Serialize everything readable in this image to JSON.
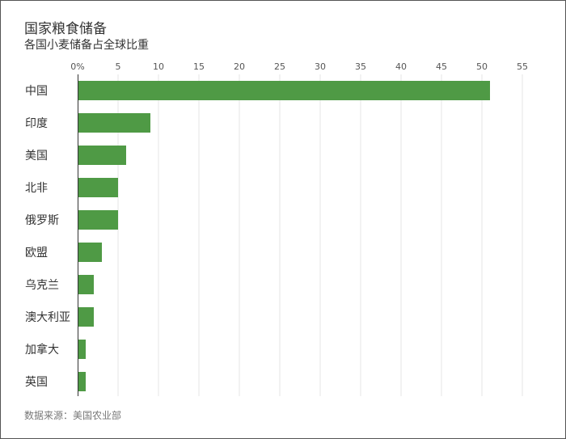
{
  "title": "国家粮食储备",
  "subtitle": "各国小麦储备占全球比重",
  "source": "数据来源：美国农业部",
  "chart_data": {
    "type": "bar",
    "orientation": "horizontal",
    "title": "国家粮食储备",
    "subtitle": "各国小麦储备占全球比重",
    "categories": [
      "中国",
      "印度",
      "美国",
      "北非",
      "俄罗斯",
      "欧盟",
      "乌克兰",
      "澳大利亚",
      "加拿大",
      "英国"
    ],
    "values": [
      51,
      9,
      6,
      5,
      5,
      3,
      2,
      2,
      1,
      1
    ],
    "xlim": [
      0,
      55
    ],
    "xticks": [
      "0%",
      "5",
      "10",
      "15",
      "20",
      "25",
      "30",
      "35",
      "40",
      "45",
      "50",
      "55"
    ],
    "tick_values": [
      0,
      5,
      10,
      15,
      20,
      25,
      30,
      35,
      40,
      45,
      50,
      55
    ],
    "grid": true,
    "bar_color": "#4f9a45",
    "grid_color": "#e6e6e6",
    "axis_color": "#333333"
  }
}
